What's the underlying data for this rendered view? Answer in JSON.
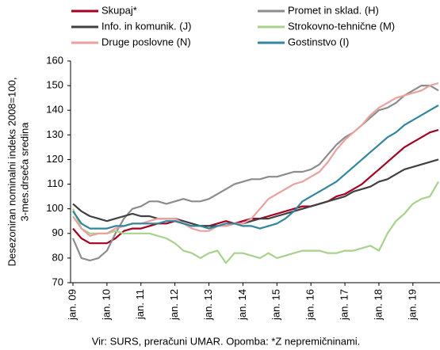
{
  "chart_data": {
    "type": "line",
    "y_label": [
      "Desezoniran nominalni indeks 2008=100,",
      "3-mes.drseča sredina"
    ],
    "footnote": "Vir: SURS, preračuni UMAR. Opomba: *Z nepremičninami.",
    "legend": "top",
    "categories": [
      "jan. 09",
      null,
      null,
      null,
      "jan. 10",
      null,
      null,
      null,
      "jan. 11",
      null,
      null,
      null,
      "jan. 12",
      null,
      null,
      null,
      "jan. 13",
      null,
      null,
      null,
      "jan. 14",
      null,
      null,
      null,
      "jan. 15",
      null,
      null,
      null,
      "jan. 16",
      null,
      null,
      null,
      "jan. 17",
      null,
      null,
      null,
      "jan. 18",
      null,
      null,
      null,
      "jan. 19",
      null,
      null,
      null
    ],
    "ylim": [
      70,
      160
    ],
    "yticks": [
      70,
      80,
      90,
      100,
      110,
      120,
      130,
      140,
      150,
      160
    ],
    "series": [
      {
        "name": "Skupaj*",
        "color": "#a50021",
        "values": [
          92,
          88,
          86,
          86,
          86,
          88,
          91,
          92,
          92,
          93,
          94,
          94,
          95,
          94,
          93,
          93,
          93,
          94,
          95,
          94,
          95,
          96,
          96,
          97,
          98,
          99,
          100,
          101,
          101,
          102,
          103,
          105,
          106,
          108,
          110,
          113,
          116,
          119,
          122,
          125,
          127,
          129,
          131,
          132
        ]
      },
      {
        "name": "Promet in sklad. (H)",
        "color": "#8c8c8c",
        "values": [
          88,
          80,
          79,
          80,
          83,
          90,
          96,
          100,
          101,
          103,
          103,
          102,
          103,
          104,
          103,
          103,
          104,
          106,
          108,
          110,
          111,
          112,
          112,
          113,
          113,
          114,
          115,
          115,
          116,
          118,
          122,
          126,
          129,
          131,
          134,
          137,
          140,
          141,
          143,
          146,
          148,
          150,
          150,
          148
        ]
      },
      {
        "name": "Info. in komunik. (J)",
        "color": "#404040",
        "values": [
          102,
          99,
          97,
          96,
          95,
          96,
          97,
          98,
          97,
          97,
          96,
          96,
          96,
          95,
          94,
          93,
          93,
          93,
          93,
          94,
          94,
          95,
          96,
          96,
          97,
          98,
          99,
          100,
          101,
          102,
          103,
          104,
          105,
          107,
          108,
          109,
          111,
          112,
          114,
          116,
          117,
          118,
          119,
          120
        ]
      },
      {
        "name": "Strokovno-tehnične (M)",
        "color": "#a9d18e",
        "values": [
          100,
          92,
          90,
          90,
          90,
          91,
          90,
          90,
          90,
          90,
          89,
          88,
          86,
          83,
          82,
          80,
          82,
          83,
          78,
          82,
          82,
          81,
          80,
          82,
          80,
          81,
          82,
          83,
          83,
          83,
          82,
          82,
          83,
          83,
          84,
          85,
          83,
          90,
          95,
          98,
          102,
          104,
          105,
          111
        ]
      },
      {
        "name": "Druge poslovne (N)",
        "color": "#eaa0a0",
        "values": [
          97,
          92,
          89,
          90,
          90,
          92,
          93,
          94,
          94,
          95,
          96,
          96,
          96,
          94,
          92,
          91,
          91,
          93,
          93,
          94,
          94,
          96,
          100,
          104,
          106,
          108,
          110,
          111,
          113,
          115,
          119,
          124,
          128,
          131,
          134,
          138,
          141,
          143,
          145,
          146,
          147,
          148,
          150,
          151
        ]
      },
      {
        "name": "Gostinstvo (I)",
        "color": "#31859c",
        "values": [
          99,
          94,
          92,
          92,
          92,
          93,
          93,
          94,
          94,
          94,
          94,
          95,
          95,
          94,
          93,
          93,
          92,
          93,
          94,
          94,
          93,
          93,
          92,
          93,
          94,
          96,
          99,
          103,
          105,
          107,
          109,
          111,
          114,
          117,
          120,
          123,
          126,
          129,
          131,
          134,
          136,
          138,
          140,
          142
        ]
      }
    ]
  }
}
